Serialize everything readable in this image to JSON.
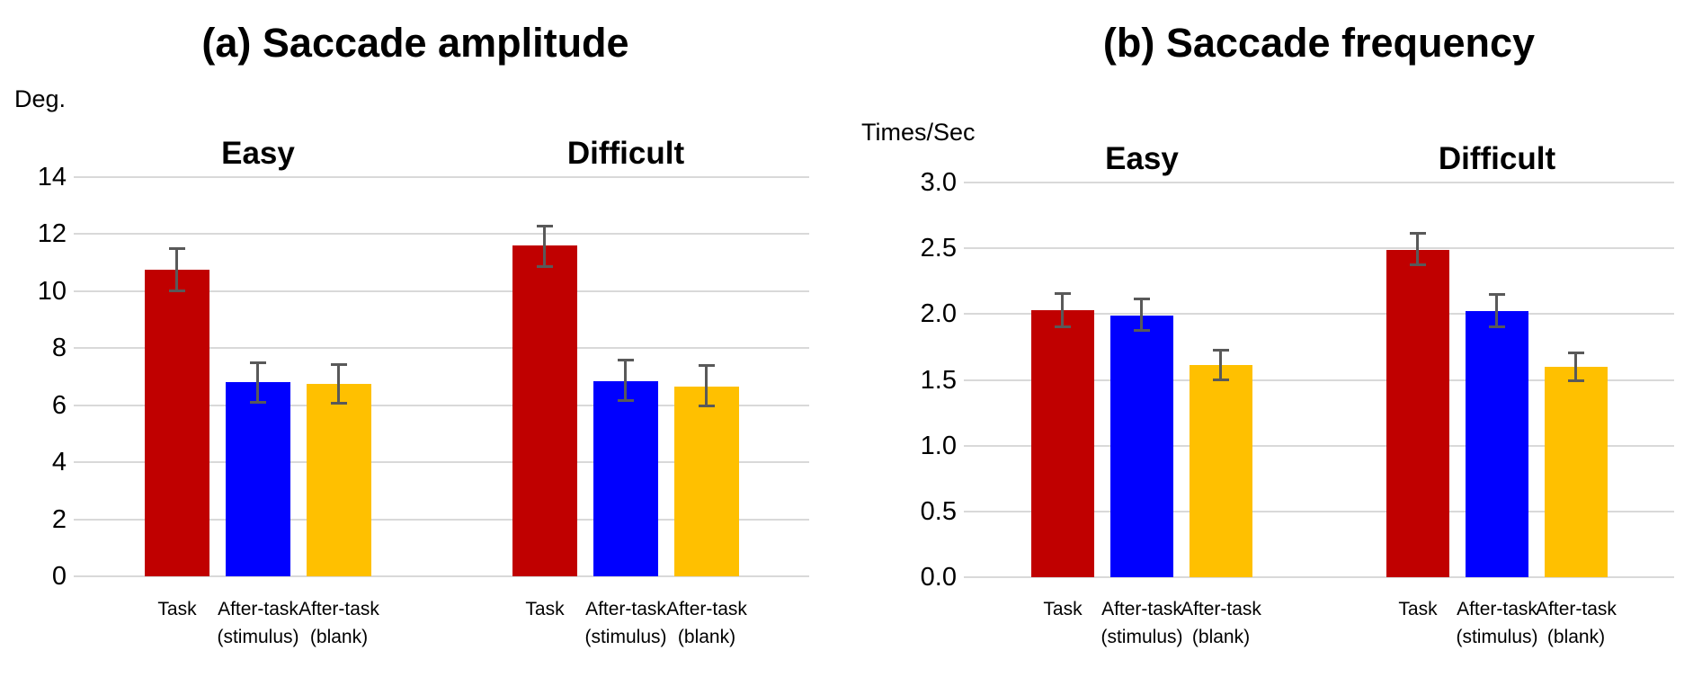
{
  "figure": {
    "background_color": "#ffffff",
    "text_color": "#000000",
    "gridline_color": "#d9d9d9",
    "error_bar_color": "#595959",
    "series_colors": {
      "task": "#c00000",
      "after_task_stimulus": "#0000ff",
      "after_task_blank": "#ffc000"
    }
  },
  "chart_data": [
    {
      "type": "bar",
      "title": "(a) Saccade amplitude",
      "ylabel": "Deg.",
      "ylim": [
        0,
        14
      ],
      "yticks": [
        0,
        2,
        4,
        6,
        8,
        10,
        12,
        14
      ],
      "ytick_labels": [
        "0",
        "2",
        "4",
        "6",
        "8",
        "10",
        "12",
        "14"
      ],
      "grid": true,
      "legend": "none",
      "groups": [
        {
          "label": "Easy",
          "bars": [
            {
              "series": "task",
              "category_lines": [
                "Task"
              ],
              "value": 10.75,
              "err_low": 10.0,
              "err_high": 11.5,
              "color": "#c00000"
            },
            {
              "series": "after_task_stimulus",
              "category_lines": [
                "After-task",
                "(stimulus)"
              ],
              "value": 6.8,
              "err_low": 6.1,
              "err_high": 7.5,
              "color": "#0000ff"
            },
            {
              "series": "after_task_blank",
              "category_lines": [
                "After-task",
                "(blank)"
              ],
              "value": 6.75,
              "err_low": 6.05,
              "err_high": 7.45,
              "color": "#ffc000"
            }
          ]
        },
        {
          "label": "Difficult",
          "bars": [
            {
              "series": "task",
              "category_lines": [
                "Task"
              ],
              "value": 11.6,
              "err_low": 10.85,
              "err_high": 12.3,
              "color": "#c00000"
            },
            {
              "series": "after_task_stimulus",
              "category_lines": [
                "After-task",
                "(stimulus)"
              ],
              "value": 6.85,
              "err_low": 6.15,
              "err_high": 7.6,
              "color": "#0000ff"
            },
            {
              "series": "after_task_blank",
              "category_lines": [
                "After-task",
                "(blank)"
              ],
              "value": 6.65,
              "err_low": 5.95,
              "err_high": 7.4,
              "color": "#ffc000"
            }
          ]
        }
      ]
    },
    {
      "type": "bar",
      "title": "(b) Saccade frequency",
      "ylabel": "Times/Sec",
      "ylim": [
        0,
        3
      ],
      "yticks": [
        0,
        0.5,
        1,
        1.5,
        2,
        2.5,
        3
      ],
      "ytick_labels": [
        "0.0",
        "0.5",
        "1.0",
        "1.5",
        "2.0",
        "2.5",
        "3.0"
      ],
      "grid": true,
      "legend": "none",
      "groups": [
        {
          "label": "Easy",
          "bars": [
            {
              "series": "task",
              "category_lines": [
                "Task"
              ],
              "value": 2.03,
              "err_low": 1.9,
              "err_high": 2.16,
              "color": "#c00000"
            },
            {
              "series": "after_task_stimulus",
              "category_lines": [
                "After-task",
                "(stimulus)"
              ],
              "value": 1.99,
              "err_low": 1.87,
              "err_high": 2.12,
              "color": "#0000ff"
            },
            {
              "series": "after_task_blank",
              "category_lines": [
                "After-task",
                "(blank)"
              ],
              "value": 1.61,
              "err_low": 1.5,
              "err_high": 1.73,
              "color": "#ffc000"
            }
          ]
        },
        {
          "label": "Difficult",
          "bars": [
            {
              "series": "task",
              "category_lines": [
                "Task"
              ],
              "value": 2.49,
              "err_low": 2.37,
              "err_high": 2.62,
              "color": "#c00000"
            },
            {
              "series": "after_task_stimulus",
              "category_lines": [
                "After-task",
                "(stimulus)"
              ],
              "value": 2.02,
              "err_low": 1.9,
              "err_high": 2.15,
              "color": "#0000ff"
            },
            {
              "series": "after_task_blank",
              "category_lines": [
                "After-task",
                "(blank)"
              ],
              "value": 1.6,
              "err_low": 1.49,
              "err_high": 1.71,
              "color": "#ffc000"
            }
          ]
        }
      ]
    }
  ]
}
